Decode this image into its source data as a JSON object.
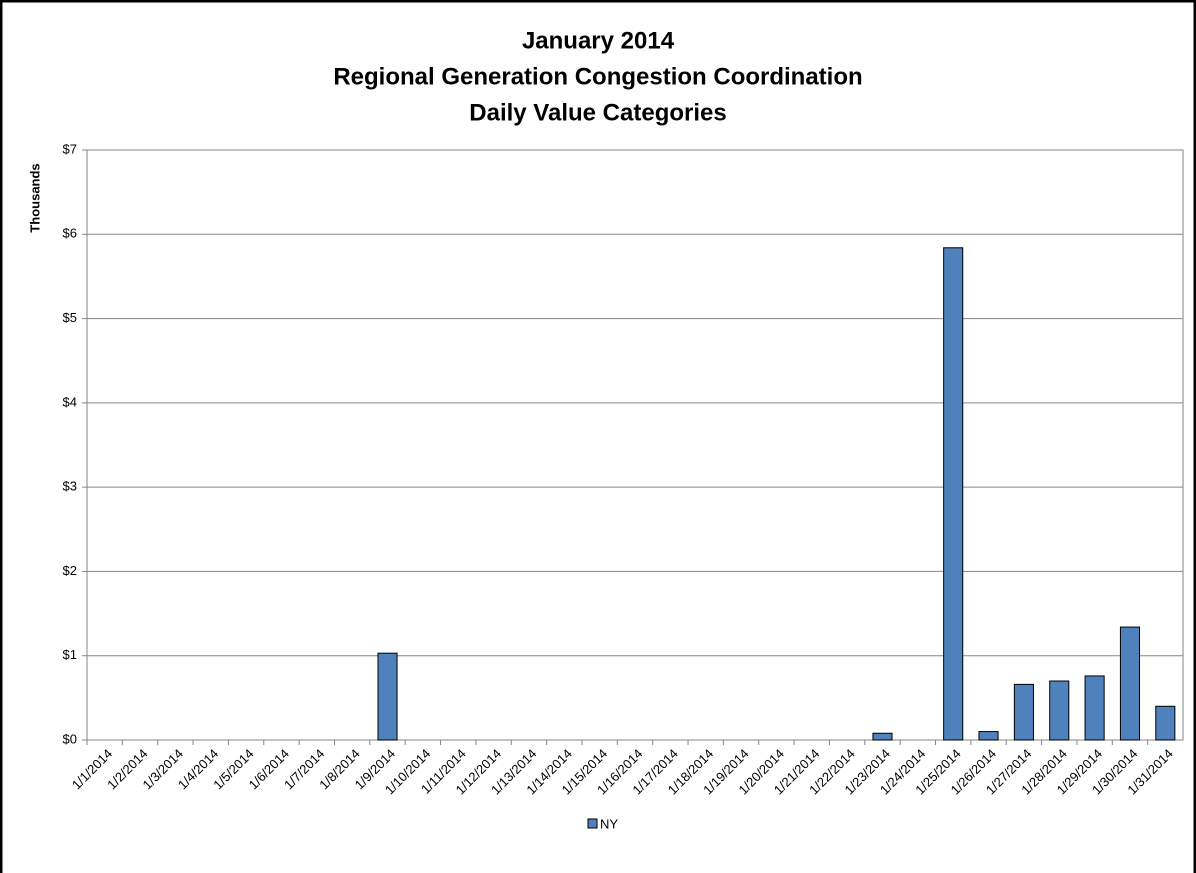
{
  "chart_data": {
    "type": "bar",
    "title": [
      "January 2014",
      "Regional Generation Congestion Coordination",
      "Daily Value Categories"
    ],
    "y_axis_label": "Thousands",
    "categories": [
      "1/1/2014",
      "1/2/2014",
      "1/3/2014",
      "1/4/2014",
      "1/5/2014",
      "1/6/2014",
      "1/7/2014",
      "1/8/2014",
      "1/9/2014",
      "1/10/2014",
      "1/11/2014",
      "1/12/2014",
      "1/13/2014",
      "1/14/2014",
      "1/15/2014",
      "1/16/2014",
      "1/17/2014",
      "1/18/2014",
      "1/19/2014",
      "1/20/2014",
      "1/21/2014",
      "1/22/2014",
      "1/23/2014",
      "1/24/2014",
      "1/25/2014",
      "1/26/2014",
      "1/27/2014",
      "1/28/2014",
      "1/29/2014",
      "1/30/2014",
      "1/31/2014"
    ],
    "series": [
      {
        "name": "NY",
        "color": "#4f81bd",
        "values": [
          0,
          0,
          0,
          0,
          0,
          0,
          0,
          0,
          1.03,
          0,
          0,
          0,
          0,
          0,
          0,
          0,
          0,
          0,
          0,
          0,
          0,
          0,
          0.08,
          0,
          5.84,
          0.1,
          0.66,
          0.7,
          0.76,
          1.34,
          0.4
        ]
      }
    ],
    "ylim": [
      0,
      7
    ],
    "yticks": [
      {
        "value": 0,
        "label": "$0"
      },
      {
        "value": 1,
        "label": "$1"
      },
      {
        "value": 2,
        "label": "$2"
      },
      {
        "value": 3,
        "label": "$3"
      },
      {
        "value": 4,
        "label": "$4"
      },
      {
        "value": 5,
        "label": "$5"
      },
      {
        "value": 6,
        "label": "$6"
      },
      {
        "value": 7,
        "label": "$7"
      }
    ],
    "grid": true,
    "legend": "bottom"
  }
}
